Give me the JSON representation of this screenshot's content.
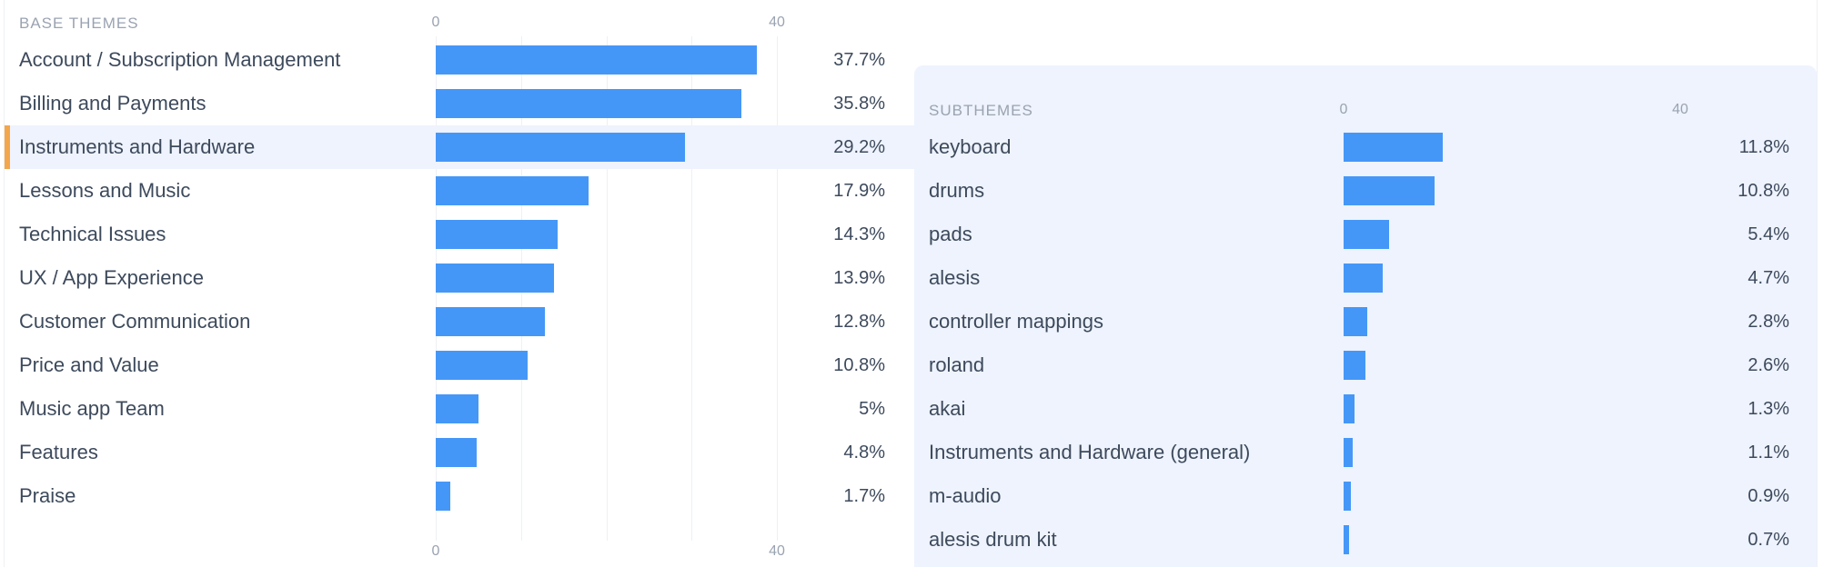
{
  "base": {
    "header": "BASE THEMES",
    "axis_ticks": [
      "0",
      "40"
    ],
    "rows": [
      {
        "label": "Account / Subscription Management",
        "value": 37.7,
        "text": "37.7%"
      },
      {
        "label": "Billing and Payments",
        "value": 35.8,
        "text": "35.8%"
      },
      {
        "label": "Instruments and Hardware",
        "value": 29.2,
        "text": "29.2%",
        "selected": true
      },
      {
        "label": "Lessons and Music",
        "value": 17.9,
        "text": "17.9%"
      },
      {
        "label": "Technical Issues",
        "value": 14.3,
        "text": "14.3%"
      },
      {
        "label": "UX / App Experience",
        "value": 13.9,
        "text": "13.9%"
      },
      {
        "label": "Customer Communication",
        "value": 12.8,
        "text": "12.8%"
      },
      {
        "label": "Price and Value",
        "value": 10.8,
        "text": "10.8%"
      },
      {
        "label": "Music app Team",
        "value": 5,
        "text": "5%"
      },
      {
        "label": "Features",
        "value": 4.8,
        "text": "4.8%"
      },
      {
        "label": "Praise",
        "value": 1.7,
        "text": "1.7%"
      }
    ]
  },
  "sub": {
    "header": "SUBTHEMES",
    "axis_ticks": [
      "0",
      "40"
    ],
    "rows": [
      {
        "label": "keyboard",
        "value": 11.8,
        "text": "11.8%"
      },
      {
        "label": "drums",
        "value": 10.8,
        "text": "10.8%"
      },
      {
        "label": "pads",
        "value": 5.4,
        "text": "5.4%"
      },
      {
        "label": "alesis",
        "value": 4.7,
        "text": "4.7%"
      },
      {
        "label": "controller mappings",
        "value": 2.8,
        "text": "2.8%"
      },
      {
        "label": "roland",
        "value": 2.6,
        "text": "2.6%"
      },
      {
        "label": "akai",
        "value": 1.3,
        "text": "1.3%"
      },
      {
        "label": "Instruments and Hardware (general)",
        "value": 1.1,
        "text": "1.1%"
      },
      {
        "label": "m-audio",
        "value": 0.9,
        "text": "0.9%"
      },
      {
        "label": "alesis drum kit",
        "value": 0.7,
        "text": "0.7%"
      }
    ]
  },
  "chart_data": [
    {
      "type": "bar",
      "title": "BASE THEMES",
      "categories": [
        "Account / Subscription Management",
        "Billing and Payments",
        "Instruments and Hardware",
        "Lessons and Music",
        "Technical Issues",
        "UX / App Experience",
        "Customer Communication",
        "Price and Value",
        "Music app Team",
        "Features",
        "Praise"
      ],
      "values": [
        37.7,
        35.8,
        29.2,
        17.9,
        14.3,
        13.9,
        12.8,
        10.8,
        5,
        4.8,
        1.7
      ],
      "xlim": [
        0,
        40
      ],
      "orientation": "horizontal",
      "color": "#4597f7"
    },
    {
      "type": "bar",
      "title": "SUBTHEMES",
      "categories": [
        "keyboard",
        "drums",
        "pads",
        "alesis",
        "controller mappings",
        "roland",
        "akai",
        "Instruments and Hardware (general)",
        "m-audio",
        "alesis drum kit"
      ],
      "values": [
        11.8,
        10.8,
        5.4,
        4.7,
        2.8,
        2.6,
        1.3,
        1.1,
        0.9,
        0.7
      ],
      "xlim": [
        0,
        40
      ],
      "orientation": "horizontal",
      "color": "#4597f7"
    }
  ],
  "colors": {
    "bar": "#4597f7",
    "highlight_bg": "#eef3fd",
    "selected_marker": "#f4a64a"
  }
}
